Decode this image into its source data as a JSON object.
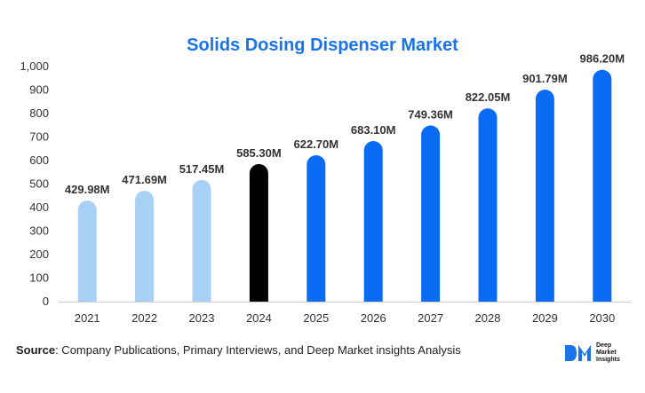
{
  "colors": {
    "title": "#1a73e8",
    "historical": "#a9d0f5",
    "base_year": "#000000",
    "forecast": "#0a6cf5",
    "axis": "#cccccc"
  },
  "chart_data": {
    "type": "bar",
    "title": "Solids Dosing Dispenser Market",
    "xlabel": "",
    "ylabel": "",
    "ylim": [
      0,
      1000
    ],
    "yticks": [
      "0",
      "100",
      "200",
      "300",
      "400",
      "500",
      "600",
      "700",
      "800",
      "900",
      "1,000"
    ],
    "grid": false,
    "categories": [
      "2021",
      "2022",
      "2023",
      "2024",
      "2025",
      "2026",
      "2027",
      "2028",
      "2029",
      "2030"
    ],
    "values": [
      429.98,
      471.69,
      517.45,
      585.3,
      622.7,
      683.1,
      749.36,
      822.05,
      901.79,
      986.2
    ],
    "data_labels": [
      "429.98M",
      "471.69M",
      "517.45M",
      "585.30M",
      "622.70M",
      "683.10M",
      "749.36M",
      "822.05M",
      "901.79M",
      "986.20M"
    ],
    "bar_colors": [
      "historical",
      "historical",
      "historical",
      "base_year",
      "forecast",
      "forecast",
      "forecast",
      "forecast",
      "forecast",
      "forecast"
    ]
  },
  "footer": {
    "source_label": "Source",
    "source_text": ": Company Publications, Primary Interviews, and Deep Market insights Analysis"
  },
  "logo": {
    "mark": "DM",
    "line1": "Deep",
    "line2": "Market",
    "line3": "Insights"
  }
}
